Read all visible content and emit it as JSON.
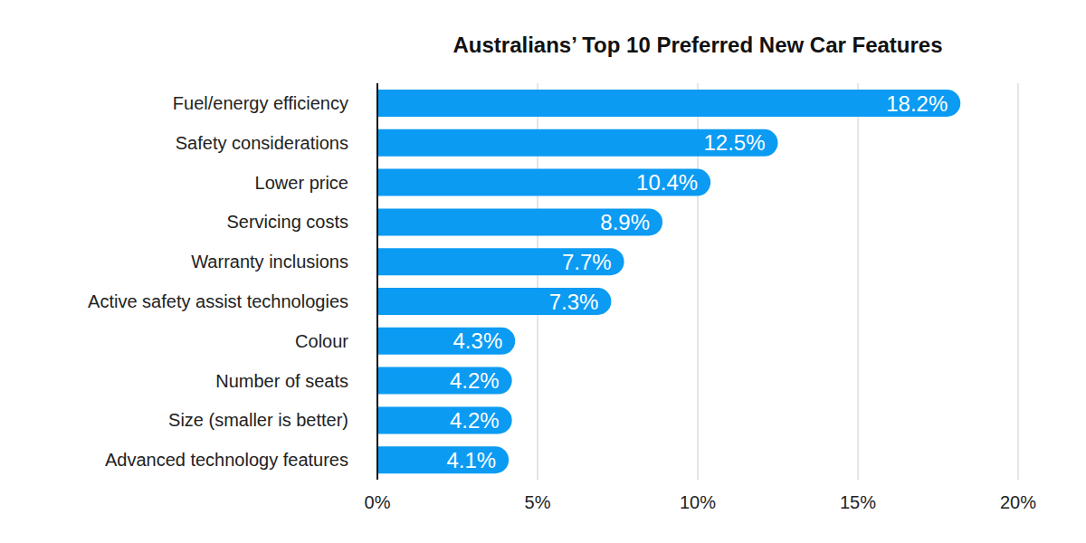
{
  "chart_data": {
    "type": "bar",
    "title": "Australians’ Top 10 Preferred New Car Features",
    "orientation": "horizontal",
    "categories": [
      "Fuel/energy efficiency",
      "Safety considerations",
      "Lower price",
      "Servicing costs",
      "Warranty inclusions",
      "Active safety assist technologies",
      "Colour",
      "Number of seats",
      "Size (smaller is better)",
      "Advanced technology features"
    ],
    "values": [
      18.2,
      12.5,
      10.4,
      8.9,
      7.7,
      7.3,
      4.3,
      4.2,
      4.2,
      4.1
    ],
    "value_labels": [
      "18.2%",
      "12.5%",
      "10.4%",
      "8.9%",
      "7.7%",
      "7.3%",
      "4.3%",
      "4.2%",
      "4.2%",
      "4.1%"
    ],
    "data_labels": true,
    "color": "#0b9bf3",
    "xlim": [
      0,
      20
    ],
    "xticks": [
      {
        "value": 0,
        "label": "0%"
      },
      {
        "value": 5,
        "label": "5%"
      },
      {
        "value": 10,
        "label": "10%"
      },
      {
        "value": 15,
        "label": "15%"
      },
      {
        "value": 20,
        "label": "20%"
      }
    ],
    "grid": true
  }
}
